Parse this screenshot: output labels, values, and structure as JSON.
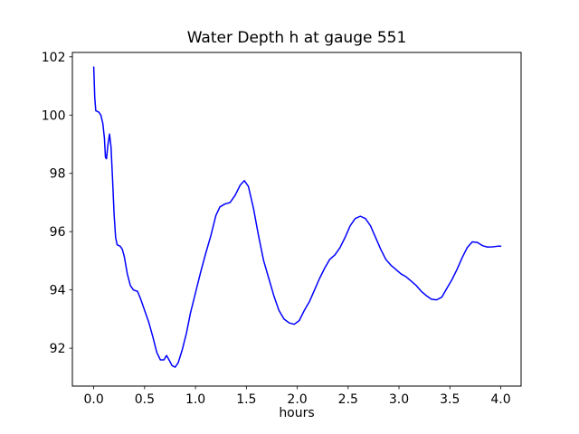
{
  "figure": {
    "background": "#ffffff"
  },
  "chart_data": {
    "type": "line",
    "title": "Water Depth h at gauge 551",
    "xlabel": "hours",
    "ylabel": "",
    "legend": null,
    "grid": false,
    "line_color": "#0000ff",
    "line_width": 1.5,
    "axes_color": "#000000",
    "xlim": [
      -0.21,
      4.2
    ],
    "ylim": [
      90.7,
      102.15
    ],
    "x_ticks": [
      0.0,
      0.5,
      1.0,
      1.5,
      2.0,
      2.5,
      3.0,
      3.5,
      4.0
    ],
    "x_tick_labels": [
      "0.0",
      "0.5",
      "1.0",
      "1.5",
      "2.0",
      "2.5",
      "3.0",
      "3.5",
      "4.0"
    ],
    "y_ticks": [
      92,
      94,
      96,
      98,
      100,
      102
    ],
    "y_tick_labels": [
      "92",
      "94",
      "96",
      "98",
      "100",
      "102"
    ],
    "series": [
      {
        "name": "water-depth-h",
        "x": [
          0.0,
          0.01,
          0.02,
          0.05,
          0.07,
          0.09,
          0.105,
          0.115,
          0.125,
          0.14,
          0.155,
          0.17,
          0.185,
          0.2,
          0.215,
          0.23,
          0.26,
          0.28,
          0.3,
          0.33,
          0.36,
          0.39,
          0.43,
          0.46,
          0.5,
          0.54,
          0.58,
          0.62,
          0.655,
          0.69,
          0.715,
          0.74,
          0.77,
          0.8,
          0.83,
          0.87,
          0.91,
          0.95,
          1.0,
          1.05,
          1.1,
          1.15,
          1.2,
          1.24,
          1.29,
          1.34,
          1.39,
          1.44,
          1.48,
          1.52,
          1.57,
          1.62,
          1.67,
          1.72,
          1.77,
          1.82,
          1.87,
          1.92,
          1.97,
          2.02,
          2.07,
          2.12,
          2.17,
          2.22,
          2.27,
          2.32,
          2.37,
          2.42,
          2.47,
          2.52,
          2.57,
          2.62,
          2.67,
          2.72,
          2.77,
          2.82,
          2.87,
          2.92,
          2.97,
          3.02,
          3.07,
          3.12,
          3.17,
          3.22,
          3.27,
          3.32,
          3.37,
          3.42,
          3.47,
          3.52,
          3.57,
          3.62,
          3.67,
          3.72,
          3.77,
          3.82,
          3.87,
          3.92,
          3.97,
          4.0
        ],
        "y": [
          101.65,
          100.6,
          100.15,
          100.1,
          100.0,
          99.7,
          99.2,
          98.55,
          98.5,
          99.0,
          99.35,
          98.9,
          97.8,
          96.6,
          95.8,
          95.55,
          95.5,
          95.4,
          95.15,
          94.55,
          94.15,
          94.0,
          93.95,
          93.7,
          93.3,
          92.9,
          92.4,
          91.85,
          91.6,
          91.6,
          91.75,
          91.6,
          91.4,
          91.35,
          91.5,
          91.95,
          92.5,
          93.2,
          93.9,
          94.6,
          95.25,
          95.85,
          96.55,
          96.85,
          96.95,
          97.0,
          97.25,
          97.6,
          97.75,
          97.55,
          96.8,
          95.85,
          95.0,
          94.4,
          93.8,
          93.3,
          93.0,
          92.87,
          92.82,
          92.95,
          93.3,
          93.6,
          94.0,
          94.4,
          94.75,
          95.05,
          95.2,
          95.45,
          95.8,
          96.2,
          96.45,
          96.53,
          96.45,
          96.2,
          95.8,
          95.4,
          95.05,
          94.85,
          94.7,
          94.55,
          94.45,
          94.3,
          94.15,
          93.95,
          93.8,
          93.68,
          93.66,
          93.75,
          94.05,
          94.35,
          94.7,
          95.1,
          95.45,
          95.65,
          95.63,
          95.52,
          95.47,
          95.48,
          95.5,
          95.5
        ]
      }
    ]
  }
}
